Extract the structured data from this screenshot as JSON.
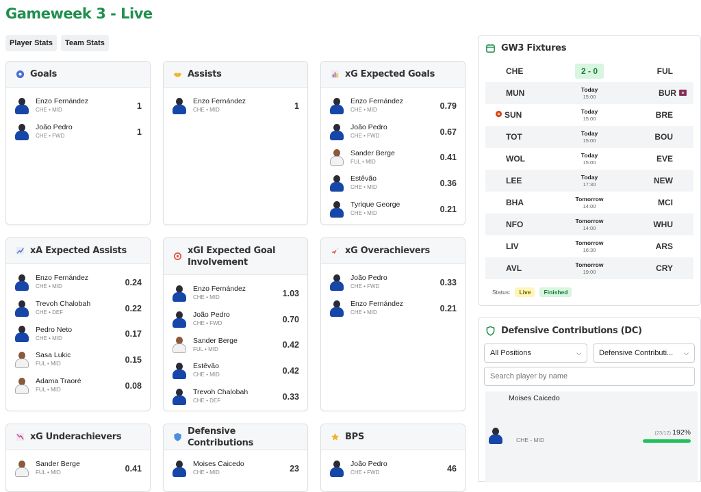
{
  "page_title": "Gameweek 3 - Live",
  "tabs": [
    "Player Stats",
    "Team Stats"
  ],
  "cards": {
    "goals": {
      "title": "Goals",
      "icon": "football-icon",
      "rows": [
        {
          "name": "Enzo Fernández",
          "meta": "CHE • MID",
          "value": "1"
        },
        {
          "name": "João Pedro",
          "meta": "CHE • FWD",
          "value": "1"
        }
      ]
    },
    "assists": {
      "title": "Assists",
      "icon": "handshake-icon",
      "rows": [
        {
          "name": "Enzo Fernández",
          "meta": "CHE • MID",
          "value": "1"
        }
      ]
    },
    "xg": {
      "title": "xG Expected Goals",
      "icon": "bar-chart-icon",
      "rows": [
        {
          "name": "Enzo Fernández",
          "meta": "CHE • MID",
          "value": "0.79"
        },
        {
          "name": "João Pedro",
          "meta": "CHE • FWD",
          "value": "0.67"
        },
        {
          "name": "Sander Berge",
          "meta": "FUL • MID",
          "value": "0.41"
        },
        {
          "name": "Estêvão",
          "meta": "CHE • MID",
          "value": "0.36"
        },
        {
          "name": "Tyrique George",
          "meta": "CHE • MID",
          "value": "0.21"
        }
      ]
    },
    "xa": {
      "title": "xA Expected Assists",
      "icon": "trend-up-icon",
      "rows": [
        {
          "name": "Enzo Fernández",
          "meta": "CHE • MID",
          "value": "0.24"
        },
        {
          "name": "Trevoh Chalobah",
          "meta": "CHE • DEF",
          "value": "0.22"
        },
        {
          "name": "Pedro Neto",
          "meta": "CHE • MID",
          "value": "0.17"
        },
        {
          "name": "Sasa Lukic",
          "meta": "FUL • MID",
          "value": "0.15"
        },
        {
          "name": "Adama Traoré",
          "meta": "FUL • MID",
          "value": "0.08"
        }
      ]
    },
    "xgi": {
      "title": "xGI Expected Goal Involvement",
      "icon": "target-icon",
      "rows": [
        {
          "name": "Enzo Fernández",
          "meta": "CHE • MID",
          "value": "1.03"
        },
        {
          "name": "João Pedro",
          "meta": "CHE • FWD",
          "value": "0.70"
        },
        {
          "name": "Sander Berge",
          "meta": "FUL • MID",
          "value": "0.42"
        },
        {
          "name": "Estêvão",
          "meta": "CHE • MID",
          "value": "0.42"
        },
        {
          "name": "Trevoh Chalobah",
          "meta": "CHE • DEF",
          "value": "0.33"
        }
      ]
    },
    "xg_over": {
      "title": "xG Overachievers",
      "icon": "rocket-icon",
      "rows": [
        {
          "name": "João Pedro",
          "meta": "CHE • FWD",
          "value": "0.33"
        },
        {
          "name": "Enzo Fernández",
          "meta": "CHE • MID",
          "value": "0.21"
        }
      ]
    },
    "xg_under": {
      "title": "xG Underachievers",
      "icon": "trend-down-icon",
      "rows": [
        {
          "name": "Sander Berge",
          "meta": "FUL • MID",
          "value": "0.41"
        }
      ]
    },
    "dc": {
      "title": "Defensive Contributions",
      "icon": "shield-icon",
      "rows": [
        {
          "name": "Moises Caicedo",
          "meta": "CHE • MID",
          "value": "23"
        }
      ]
    },
    "bps": {
      "title": "BPS",
      "icon": "star-icon",
      "rows": [
        {
          "name": "João Pedro",
          "meta": "CHE • FWD",
          "value": "46"
        }
      ]
    }
  },
  "fixtures": {
    "title": "GW3 Fixtures",
    "rows": [
      {
        "home": "CHE",
        "away": "FUL",
        "score": "2 - 0"
      },
      {
        "home": "MUN",
        "away": "BUR",
        "day": "Today",
        "time": "15:00",
        "away_badge": true
      },
      {
        "home": "SUN",
        "away": "BRE",
        "day": "Today",
        "time": "15:00",
        "home_badge": true
      },
      {
        "home": "TOT",
        "away": "BOU",
        "day": "Today",
        "time": "15:00"
      },
      {
        "home": "WOL",
        "away": "EVE",
        "day": "Today",
        "time": "15:00"
      },
      {
        "home": "LEE",
        "away": "NEW",
        "day": "Today",
        "time": "17:30"
      },
      {
        "home": "BHA",
        "away": "MCI",
        "day": "Tomorrow",
        "time": "14:00"
      },
      {
        "home": "NFO",
        "away": "WHU",
        "day": "Tomorrow",
        "time": "14:00"
      },
      {
        "home": "LIV",
        "away": "ARS",
        "day": "Tomorrow",
        "time": "16:30"
      },
      {
        "home": "AVL",
        "away": "CRY",
        "day": "Tomorrow",
        "time": "19:00"
      }
    ],
    "status_label": "Status:",
    "status_live": "Live",
    "status_finished": "Finished"
  },
  "dc_panel": {
    "title": "Defensive Contributions (DC)",
    "position_select": "All Positions",
    "stat_select": "Defensive Contributi...",
    "search_placeholder": "Search player by name",
    "player": {
      "name": "Moises Caicedo",
      "meta": "CHE - MID",
      "fraction": "(23/12)",
      "percent": "192%",
      "progress": 1.0
    }
  },
  "colors": {
    "accent": "#1f8f4e",
    "live": "#fff5b8",
    "finished": "#d7f5df",
    "progress": "#22c05a"
  }
}
